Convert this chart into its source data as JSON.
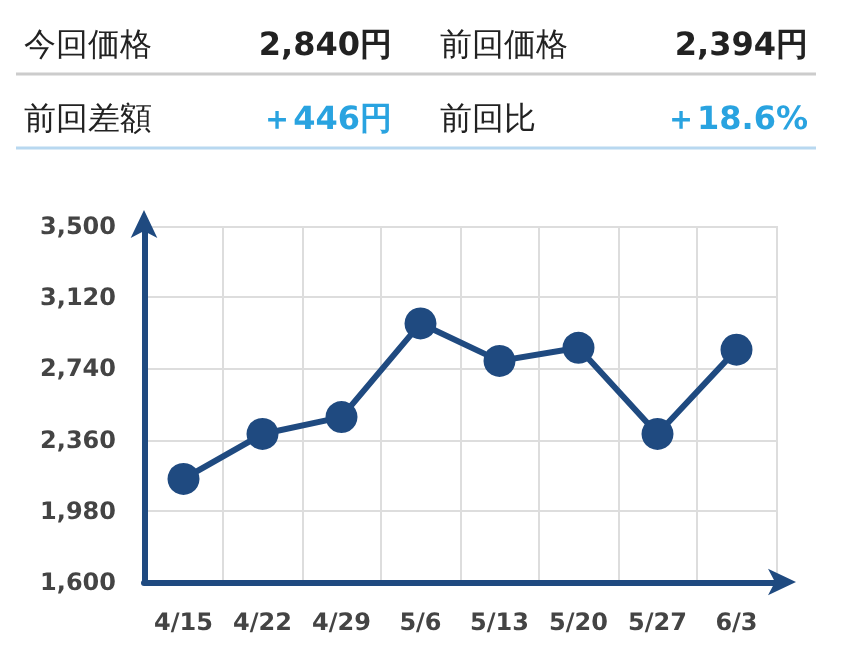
{
  "chart_data": {
    "type": "line",
    "annotations": [
      "今回価格",
      "2,840円",
      "前回価格",
      "2,394円",
      "前回差額",
      "＋446円",
      "前回比",
      "＋18.6%"
    ],
    "categories": [
      "4/15",
      "4/22",
      "4/29",
      "5/6",
      "5/13",
      "5/20",
      "5/27",
      "6/3"
    ],
    "series": [
      {
        "color": "#1f4a80",
        "values": [
          2150,
          2390,
          2480,
          2980,
          2780,
          2850,
          2390,
          2840
        ]
      }
    ],
    "ylim": [
      1600,
      3500
    ],
    "yticks": [
      {
        "value": 1600,
        "label": "1,600"
      },
      {
        "value": 1980,
        "label": "1,980"
      },
      {
        "value": 2360,
        "label": "2,360"
      },
      {
        "value": 2740,
        "label": "2,740"
      },
      {
        "value": 3120,
        "label": "3,120"
      },
      {
        "value": 3500,
        "label": "3,500"
      }
    ],
    "grid": true,
    "marker": "circle",
    "line_style": "solid"
  }
}
